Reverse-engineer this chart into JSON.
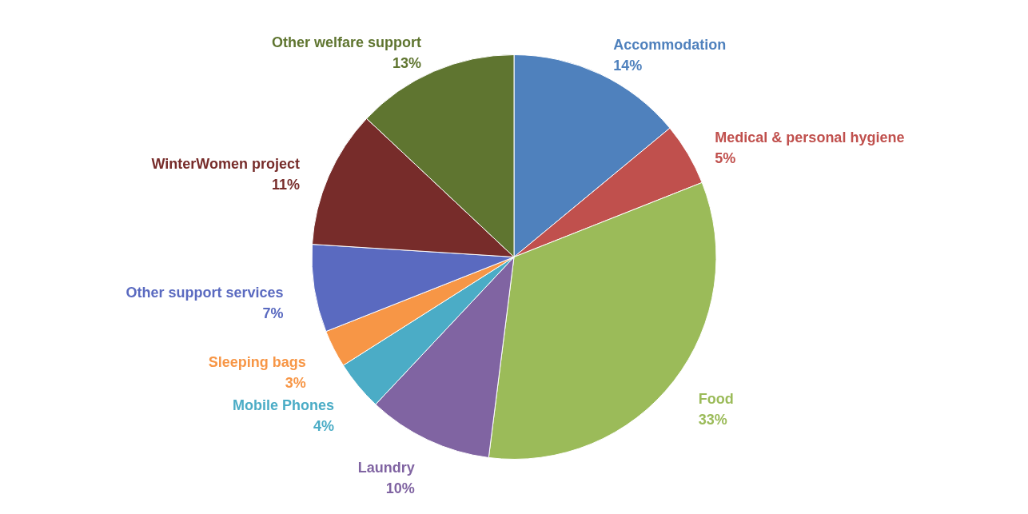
{
  "chart_data": {
    "type": "pie",
    "categories": [
      "Accommodation",
      "Medical & personal hygiene",
      "Food",
      "Laundry",
      "Mobile Phones",
      "Sleeping bags",
      "Other support services",
      "WinterWomen project",
      "Other welfare support"
    ],
    "values": [
      14,
      5,
      33,
      10,
      4,
      3,
      7,
      11,
      13
    ],
    "value_labels": [
      "14%",
      "5%",
      "33%",
      "10%",
      "4%",
      "3%",
      "7%",
      "11%",
      "13%"
    ],
    "colors": [
      "#4f81bd",
      "#c0504d",
      "#9bbb59",
      "#8064a2",
      "#4bacc6",
      "#f79646",
      "#5a6ac0",
      "#772c2a",
      "#5f7530"
    ]
  }
}
